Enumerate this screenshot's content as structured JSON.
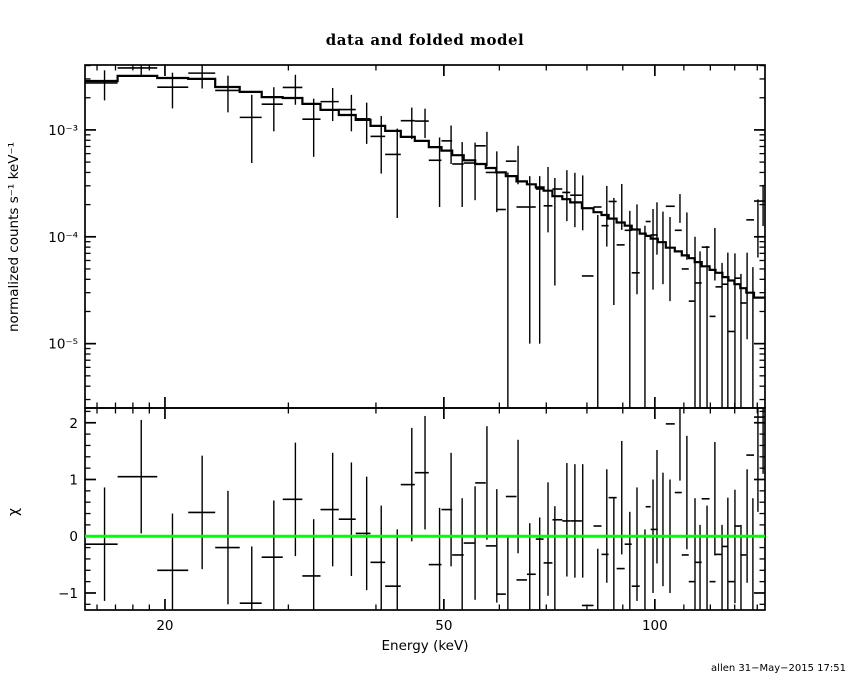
{
  "title": "data and folded model",
  "watermark": "allen 31−May−2015 17:51",
  "chart_data": {
    "type": "scatter",
    "description": "X-ray spectrum: data points with error bars and folded model histogram (top, log-log), chi residuals with green zero line (bottom)",
    "xlabel": "Energy (keV)",
    "xscale": "log",
    "xlim": [
      15.38,
      143.6
    ],
    "x_ticks": [
      {
        "value": 20,
        "label": "20"
      },
      {
        "value": 50,
        "label": "50"
      },
      {
        "value": 100,
        "label": "100"
      }
    ],
    "colors": {
      "data": "#000000",
      "model": "#000000",
      "zero_line": "#00ff00",
      "frame": "#000000"
    },
    "panels": [
      {
        "name": "spectrum",
        "ylabel": "normalized counts s⁻¹ keV⁻¹",
        "yscale": "log",
        "ylim": [
          2.5e-06,
          0.00405
        ],
        "y_ticks": [
          {
            "value": 0.001,
            "label": "10⁻³"
          },
          {
            "value": 0.0001,
            "label": "10⁻⁴"
          },
          {
            "value": 1e-05,
            "label": "10⁻⁵"
          }
        ]
      },
      {
        "name": "residuals",
        "ylabel": "χ",
        "yscale": "linear",
        "ylim": [
          -1.3,
          2.26
        ],
        "y_ticks": [
          {
            "value": 2,
            "label": "2"
          },
          {
            "value": 1,
            "label": "1"
          },
          {
            "value": 0,
            "label": "0"
          },
          {
            "value": -1,
            "label": "−1"
          }
        ],
        "zero_line": 0,
        "chi_err": 1.0
      }
    ],
    "bin_edges_keV": [
      15.38,
      17.12,
      19.5,
      21.59,
      23.59,
      25.57,
      27.48,
      29.45,
      31.41,
      33.34,
      35.4,
      37.43,
      39.29,
      41.23,
      43.4,
      45.45,
      47.58,
      49.61,
      51.38,
      53.37,
      55.42,
      57.38,
      59.39,
      61.29,
      63.47,
      65.69,
      67.62,
      69.39,
      71.43,
      73.77,
      75.72,
      78.68,
      81.75,
      83.93,
      85.9,
      88.2,
      90.56,
      92.68,
      95.14,
      97.03,
      98.63,
      100.96,
      103.67,
      106.77,
      109.24,
      111.78,
      113.99,
      116.63,
      119.7,
      122.05,
      124.86,
      127.32,
      129.85,
      132.42,
      135.05,
      138.5,
      143.6
    ],
    "energy_keV": [
      16.4,
      18.5,
      20.5,
      22.6,
      24.6,
      26.6,
      28.6,
      30.7,
      32.6,
      34.7,
      36.9,
      38.8,
      40.7,
      42.9,
      45.0,
      47.0,
      49.3,
      51.2,
      53.1,
      55.4,
      57.6,
      59.5,
      61.7,
      63.8,
      66.3,
      68.5,
      70.4,
      72.0,
      74.9,
      76.9,
      78.9,
      82.9,
      85.4,
      87.4,
      89.7,
      92.1,
      94.3,
      96.8,
      99.4,
      100.7,
      102.7,
      105.1,
      108.6,
      111.1,
      114.1,
      116.0,
      118.7,
      121.8,
      124.7,
      127.1,
      130.1,
      132.7,
      135.4,
      138.0,
      140.3,
      142.7
    ],
    "counts": [
      0.00275,
      0.0038,
      0.00251,
      0.0034,
      0.00234,
      0.00131,
      0.00174,
      0.0025,
      0.00126,
      0.00184,
      0.00155,
      0.00127,
      0.00087,
      0.00059,
      0.00122,
      0.00121,
      0.00052,
      0.00079,
      0.00048,
      0.00049,
      0.00071,
      0.0004,
      0.00018,
      0.00051,
      0.00019,
      0.00019,
      0.00028,
      0.000195,
      0.00028,
      0.00026,
      0.000245,
      4.3e-05,
      0.00019,
      0.000127,
      0.000214,
      8.4e-05,
      0.000115,
      4.6e-05,
      0.000107,
      0.000139,
      0.000104,
      8.9e-05,
      0.000193,
      0.000115,
      5e-05,
      2.5e-05,
      3.7e-05,
      8e-05,
      1.8e-05,
      3.4e-05,
      3.6e-05,
      1.3e-05,
      4.1e-05,
      2.4e-05,
      0.000144,
      0.000216
    ],
    "counts_err": [
      0.00086,
      0.00058,
      0.00092,
      0.00096,
      0.00088,
      0.00082,
      0.00077,
      0.00078,
      0.0007,
      0.00063,
      0.00058,
      0.00053,
      0.00048,
      0.00044,
      0.0004,
      0.00037,
      0.00033,
      0.00031,
      0.00029,
      0.00027,
      0.00025,
      0.00023,
      0.00022,
      0.0002,
      0.00018,
      0.00018,
      0.00017,
      0.00016,
      0.00014,
      0.000137,
      0.00013,
      0.000117,
      0.000109,
      0.000104,
      9.8e-05,
      9.1e-05,
      8.6e-05,
      8.1e-05,
      7.5e-05,
      7.1e-05,
      6.8e-05,
      6.4e-05,
      5.8e-05,
      5.4e-05,
      5e-05,
      4.8e-05,
      4.5e-05,
      4.1e-05,
      3.9e-05,
      3.7e-05,
      3.4e-05,
      3.2e-05,
      3e-05,
      2.8e-05,
      8e-05,
      9e-05
    ],
    "model_counts": [
      0.00287,
      0.0032,
      0.00306,
      0.003,
      0.00252,
      0.00227,
      0.00203,
      0.00199,
      0.00175,
      0.00154,
      0.00138,
      0.00124,
      0.00109,
      0.00098,
      0.00086,
      0.00079,
      0.00069,
      0.00064,
      0.00058,
      0.00052,
      0.00048,
      0.00044,
      0.0004,
      0.00037,
      0.00033,
      0.00031,
      0.00029,
      0.00027,
      0.00024,
      0.000225,
      0.00021,
      0.000185,
      0.00017,
      0.00016,
      0.000148,
      0.000136,
      0.000127,
      0.000117,
      0.000107,
      0.000102,
      9.6e-05,
      8.9e-05,
      7.9e-05,
      7.3e-05,
      6.7e-05,
      6.3e-05,
      5.8e-05,
      5.3e-05,
      4.9e-05,
      4.6e-05,
      4.2e-05,
      3.9e-05,
      3.6e-05,
      3.3e-05,
      3e-05,
      2.7e-05
    ],
    "chi": [
      -0.14,
      1.05,
      -0.6,
      0.42,
      -0.2,
      -1.18,
      -0.37,
      0.65,
      -0.7,
      0.47,
      0.3,
      0.05,
      -0.46,
      -0.88,
      0.91,
      1.12,
      -0.5,
      0.47,
      -0.33,
      -0.12,
      0.94,
      -0.17,
      -1.02,
      0.7,
      -0.77,
      -0.67,
      -0.05,
      -0.47,
      0.29,
      0.27,
      0.27,
      -1.22,
      0.18,
      -0.32,
      0.68,
      -0.57,
      -0.14,
      -0.88,
      0.0,
      0.52,
      0.12,
      0.0,
      1.98,
      0.77,
      -0.33,
      -0.8,
      -0.46,
      0.66,
      -0.8,
      -0.32,
      -0.18,
      -0.8,
      0.18,
      -0.33,
      1.43,
      2.1
    ]
  }
}
